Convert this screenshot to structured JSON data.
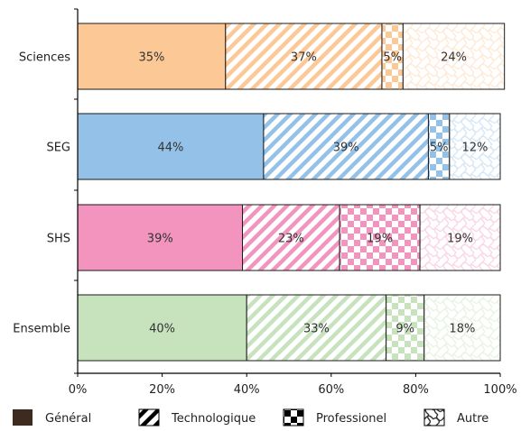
{
  "chart_data": {
    "type": "bar",
    "orientation": "horizontal",
    "stacked": true,
    "categories": [
      "Sciences",
      "SEG",
      "SHS",
      "Ensemble"
    ],
    "series": [
      {
        "name": "Général",
        "values": [
          35,
          44,
          39,
          40
        ],
        "labels": [
          "35%",
          "44%",
          "39%",
          "40%"
        ],
        "pattern": "solid"
      },
      {
        "name": "Technologique",
        "values": [
          37,
          39,
          23,
          33
        ],
        "labels": [
          "37%",
          "39%",
          "23%",
          "33%"
        ],
        "pattern": "diagonal"
      },
      {
        "name": "Professionel",
        "values": [
          5,
          5,
          19,
          9
        ],
        "labels": [
          "5%",
          "5%",
          "19%",
          "9%"
        ],
        "pattern": "checker"
      },
      {
        "name": "Autre",
        "values": [
          24,
          12,
          19,
          18
        ],
        "labels": [
          "24%",
          "12%",
          "19%",
          "18%"
        ],
        "pattern": "wave"
      }
    ],
    "category_colors": [
      "#fcc896",
      "#93c1e8",
      "#f294be",
      "#c6e3bd"
    ],
    "xlim": [
      0,
      100
    ],
    "xticks": [
      "0%",
      "20%",
      "40%",
      "60%",
      "80%",
      "100%"
    ],
    "xlabel": "",
    "ylabel": "",
    "grid": false,
    "legend_position": "bottom",
    "legend_swatch_color": "#3d2b1f"
  }
}
